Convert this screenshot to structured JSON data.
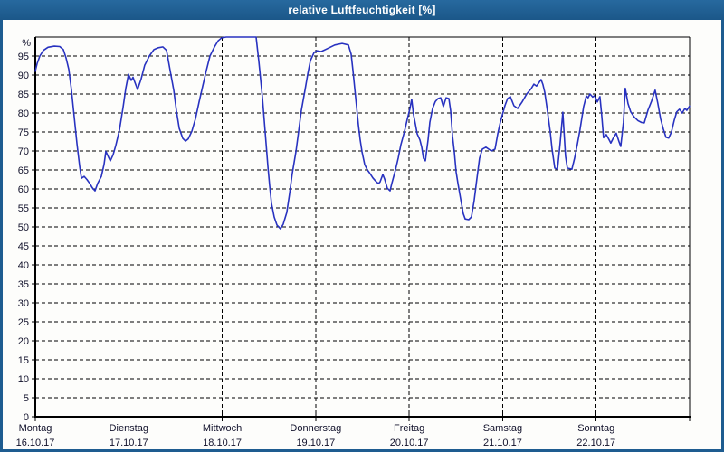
{
  "window": {
    "title": "relative Luftfeuchtigkeit [%]"
  },
  "colors": {
    "frame_and_titlebar": "#1e5c90",
    "plot_background": "#fdfdfb",
    "line": "#2832c0",
    "grid": "#000000",
    "label_text": "#11112b",
    "title_text": "#ffffff"
  },
  "chart_data": {
    "type": "line",
    "title": "relative Luftfeuchtigkeit [%]",
    "xlabel": "",
    "ylabel": "%",
    "ylim": [
      0,
      100
    ],
    "grid": "dashed",
    "legend": "none",
    "y_ticks": [
      0,
      5,
      10,
      15,
      20,
      25,
      30,
      35,
      40,
      45,
      50,
      55,
      60,
      65,
      70,
      75,
      80,
      85,
      90,
      95
    ],
    "x_axis_days": [
      {
        "name": "Montag",
        "date": "16.10.17"
      },
      {
        "name": "Dienstag",
        "date": "17.10.17"
      },
      {
        "name": "Mittwoch",
        "date": "18.10.17"
      },
      {
        "name": "Donnerstag",
        "date": "19.10.17"
      },
      {
        "name": "Freitag",
        "date": "20.10.17"
      },
      {
        "name": "Samstag",
        "date": "21.10.17"
      },
      {
        "name": "Sonntag",
        "date": "22.10.17"
      }
    ],
    "series": [
      {
        "name": "relative Luftfeuchtigkeit",
        "unit": "%",
        "color": "#2832c0",
        "x_unit": "days since Montag 16.10.17 00:00",
        "points": [
          [
            0.0,
            91.0
          ],
          [
            0.019,
            93.0
          ],
          [
            0.048,
            95.0
          ],
          [
            0.087,
            96.5
          ],
          [
            0.136,
            97.3
          ],
          [
            0.203,
            97.6
          ],
          [
            0.261,
            97.5
          ],
          [
            0.3,
            96.7
          ],
          [
            0.329,
            94.5
          ],
          [
            0.358,
            91.5
          ],
          [
            0.387,
            86.0
          ],
          [
            0.416,
            79.0
          ],
          [
            0.445,
            72.0
          ],
          [
            0.474,
            66.0
          ],
          [
            0.494,
            62.8
          ],
          [
            0.523,
            63.3
          ],
          [
            0.552,
            62.5
          ],
          [
            0.581,
            61.5
          ],
          [
            0.61,
            60.3
          ],
          [
            0.639,
            59.5
          ],
          [
            0.668,
            61.5
          ],
          [
            0.707,
            63.3
          ],
          [
            0.736,
            66.5
          ],
          [
            0.755,
            69.9
          ],
          [
            0.784,
            68.3
          ],
          [
            0.803,
            67.4
          ],
          [
            0.833,
            69.0
          ],
          [
            0.862,
            71.5
          ],
          [
            0.9,
            75.5
          ],
          [
            0.939,
            81.5
          ],
          [
            0.968,
            86.5
          ],
          [
            0.997,
            90.2
          ],
          [
            1.026,
            88.6
          ],
          [
            1.046,
            89.4
          ],
          [
            1.094,
            86.2
          ],
          [
            1.133,
            89.0
          ],
          [
            1.171,
            92.6
          ],
          [
            1.22,
            95.0
          ],
          [
            1.268,
            96.7
          ],
          [
            1.317,
            97.2
          ],
          [
            1.365,
            97.4
          ],
          [
            1.404,
            96.5
          ],
          [
            1.443,
            91.2
          ],
          [
            1.481,
            86.0
          ],
          [
            1.51,
            80.5
          ],
          [
            1.539,
            76.0
          ],
          [
            1.578,
            73.3
          ],
          [
            1.607,
            72.6
          ],
          [
            1.636,
            73.2
          ],
          [
            1.675,
            75.2
          ],
          [
            1.714,
            78.5
          ],
          [
            1.752,
            82.9
          ],
          [
            1.791,
            87.1
          ],
          [
            1.83,
            91.2
          ],
          [
            1.869,
            95.0
          ],
          [
            1.917,
            97.4
          ],
          [
            1.956,
            99.0
          ],
          [
            1.994,
            99.8
          ],
          [
            2.043,
            100.0
          ],
          [
            2.362,
            100.0
          ],
          [
            2.391,
            93.6
          ],
          [
            2.411,
            88.8
          ],
          [
            2.43,
            84.0
          ],
          [
            2.449,
            78.3
          ],
          [
            2.469,
            72.0
          ],
          [
            2.488,
            66.0
          ],
          [
            2.507,
            61.0
          ],
          [
            2.527,
            56.2
          ],
          [
            2.556,
            52.6
          ],
          [
            2.585,
            50.5
          ],
          [
            2.623,
            49.5
          ],
          [
            2.652,
            50.7
          ],
          [
            2.691,
            53.8
          ],
          [
            2.72,
            58.6
          ],
          [
            2.749,
            64.0
          ],
          [
            2.788,
            69.8
          ],
          [
            2.817,
            75.2
          ],
          [
            2.846,
            80.7
          ],
          [
            2.885,
            86.0
          ],
          [
            2.914,
            90.2
          ],
          [
            2.943,
            93.8
          ],
          [
            2.982,
            95.9
          ],
          [
            3.011,
            96.4
          ],
          [
            3.059,
            96.2
          ],
          [
            3.137,
            97.1
          ],
          [
            3.204,
            97.9
          ],
          [
            3.282,
            98.3
          ],
          [
            3.35,
            97.9
          ],
          [
            3.379,
            95.5
          ],
          [
            3.398,
            91.2
          ],
          [
            3.418,
            86.4
          ],
          [
            3.437,
            81.7
          ],
          [
            3.456,
            76.9
          ],
          [
            3.476,
            72.9
          ],
          [
            3.495,
            69.8
          ],
          [
            3.524,
            66.4
          ],
          [
            3.553,
            65.0
          ],
          [
            3.582,
            64.0
          ],
          [
            3.611,
            62.9
          ],
          [
            3.64,
            62.1
          ],
          [
            3.669,
            61.4
          ],
          [
            3.688,
            61.8
          ],
          [
            3.718,
            63.8
          ],
          [
            3.737,
            62.6
          ],
          [
            3.766,
            60.2
          ],
          [
            3.795,
            59.5
          ],
          [
            3.814,
            61.4
          ],
          [
            3.853,
            65.0
          ],
          [
            3.882,
            68.1
          ],
          [
            3.911,
            71.7
          ],
          [
            3.95,
            75.2
          ],
          [
            3.979,
            78.3
          ],
          [
            4.008,
            81.2
          ],
          [
            4.027,
            83.6
          ],
          [
            4.047,
            79.5
          ],
          [
            4.066,
            77.1
          ],
          [
            4.086,
            74.5
          ],
          [
            4.115,
            72.9
          ],
          [
            4.134,
            71.0
          ],
          [
            4.153,
            68.1
          ],
          [
            4.173,
            67.4
          ],
          [
            4.202,
            72.9
          ],
          [
            4.221,
            77.6
          ],
          [
            4.25,
            81.2
          ],
          [
            4.279,
            83.0
          ],
          [
            4.308,
            83.8
          ],
          [
            4.337,
            84.0
          ],
          [
            4.366,
            81.7
          ],
          [
            4.395,
            84.0
          ],
          [
            4.425,
            83.8
          ],
          [
            4.444,
            80.5
          ],
          [
            4.463,
            74.0
          ],
          [
            4.483,
            69.8
          ],
          [
            4.502,
            64.5
          ],
          [
            4.521,
            61.5
          ],
          [
            4.55,
            57.5
          ],
          [
            4.579,
            53.5
          ],
          [
            4.599,
            52.1
          ],
          [
            4.637,
            51.9
          ],
          [
            4.666,
            52.6
          ],
          [
            4.695,
            56.9
          ],
          [
            4.724,
            62.6
          ],
          [
            4.753,
            68.1
          ],
          [
            4.783,
            70.5
          ],
          [
            4.821,
            71.0
          ],
          [
            4.85,
            70.5
          ],
          [
            4.879,
            70.0
          ],
          [
            4.918,
            70.5
          ],
          [
            4.947,
            74.5
          ],
          [
            4.976,
            77.6
          ],
          [
            5.005,
            80.2
          ],
          [
            5.024,
            81.9
          ],
          [
            5.053,
            83.8
          ],
          [
            5.082,
            84.3
          ],
          [
            5.121,
            81.9
          ],
          [
            5.16,
            81.2
          ],
          [
            5.208,
            82.9
          ],
          [
            5.257,
            85.0
          ],
          [
            5.305,
            86.4
          ],
          [
            5.334,
            87.6
          ],
          [
            5.363,
            87.1
          ],
          [
            5.411,
            88.8
          ],
          [
            5.431,
            87.5
          ],
          [
            5.45,
            85.5
          ],
          [
            5.479,
            80.5
          ],
          [
            5.508,
            75.2
          ],
          [
            5.528,
            70.5
          ],
          [
            5.557,
            65.5
          ],
          [
            5.586,
            65.2
          ],
          [
            5.615,
            72.0
          ],
          [
            5.644,
            80.2
          ],
          [
            5.673,
            68.6
          ],
          [
            5.692,
            65.5
          ],
          [
            5.74,
            65.2
          ],
          [
            5.769,
            68.1
          ],
          [
            5.798,
            71.7
          ],
          [
            5.827,
            75.5
          ],
          [
            5.866,
            81.7
          ],
          [
            5.895,
            84.5
          ],
          [
            5.914,
            84.0
          ],
          [
            5.934,
            85.0
          ],
          [
            5.963,
            84.2
          ],
          [
            5.983,
            84.6
          ],
          [
            6.012,
            82.9
          ],
          [
            6.041,
            84.3
          ],
          [
            6.06,
            79.3
          ],
          [
            6.079,
            73.5
          ],
          [
            6.108,
            74.3
          ],
          [
            6.137,
            73.0
          ],
          [
            6.157,
            72.1
          ],
          [
            6.186,
            73.5
          ],
          [
            6.215,
            74.7
          ],
          [
            6.244,
            72.5
          ],
          [
            6.263,
            71.2
          ],
          [
            6.292,
            77.6
          ],
          [
            6.312,
            86.5
          ],
          [
            6.341,
            82.5
          ],
          [
            6.37,
            80.3
          ],
          [
            6.408,
            78.9
          ],
          [
            6.447,
            78.0
          ],
          [
            6.486,
            77.5
          ],
          [
            6.515,
            77.4
          ],
          [
            6.554,
            80.7
          ],
          [
            6.592,
            83.1
          ],
          [
            6.631,
            86.0
          ],
          [
            6.66,
            82.5
          ],
          [
            6.689,
            78.5
          ],
          [
            6.718,
            75.8
          ],
          [
            6.747,
            73.6
          ],
          [
            6.776,
            73.4
          ],
          [
            6.805,
            75.0
          ],
          [
            6.834,
            78.0
          ],
          [
            6.863,
            80.3
          ],
          [
            6.892,
            81.0
          ],
          [
            6.921,
            80.0
          ],
          [
            6.95,
            81.2
          ],
          [
            6.97,
            80.7
          ],
          [
            6.999,
            81.8
          ]
        ]
      }
    ]
  }
}
